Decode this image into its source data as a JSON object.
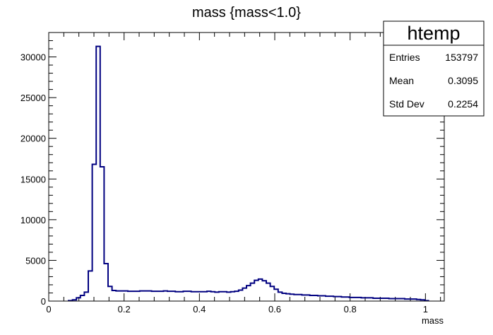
{
  "chart_data": {
    "type": "bar",
    "title": "mass {mass<1.0}",
    "xlabel": "mass",
    "ylabel": "",
    "xlim": [
      0,
      1.05
    ],
    "ylim": [
      0,
      33000
    ],
    "x_ticks": [
      0,
      0.2,
      0.4,
      0.6,
      0.8,
      1
    ],
    "x_tick_labels": [
      "0",
      "0.2",
      "0.4",
      "0.6",
      "0.8",
      "1"
    ],
    "y_ticks": [
      0,
      5000,
      10000,
      15000,
      20000,
      25000,
      30000
    ],
    "y_tick_labels": [
      "0",
      "5000",
      "10000",
      "15000",
      "20000",
      "25000",
      "30000"
    ],
    "bin_width": 0.0105,
    "bin_lower_edges": [
      0.0525,
      0.063,
      0.0735,
      0.084,
      0.0945,
      0.105,
      0.1155,
      0.126,
      0.1365,
      0.147,
      0.1575,
      0.168,
      0.1785,
      0.189,
      0.1995,
      0.21,
      0.2205,
      0.231,
      0.2415,
      0.252,
      0.2625,
      0.273,
      0.2835,
      0.294,
      0.3045,
      0.315,
      0.3255,
      0.336,
      0.3465,
      0.357,
      0.3675,
      0.378,
      0.3885,
      0.399,
      0.4095,
      0.42,
      0.4305,
      0.441,
      0.4515,
      0.462,
      0.4725,
      0.483,
      0.4935,
      0.504,
      0.5145,
      0.525,
      0.5355,
      0.546,
      0.5565,
      0.567,
      0.5775,
      0.588,
      0.5985,
      0.609,
      0.6195,
      0.63,
      0.6405,
      0.651,
      0.6615,
      0.672,
      0.6825,
      0.693,
      0.7035,
      0.714,
      0.7245,
      0.735,
      0.7455,
      0.756,
      0.7665,
      0.777,
      0.7875,
      0.798,
      0.8085,
      0.819,
      0.8295,
      0.84,
      0.8505,
      0.861,
      0.8715,
      0.882,
      0.8925,
      0.903,
      0.9135,
      0.924,
      0.9345,
      0.945,
      0.9555,
      0.966,
      0.9765,
      0.987,
      0.9975
    ],
    "bin_values": [
      50,
      150,
      400,
      700,
      1100,
      3700,
      16800,
      31300,
      16500,
      4600,
      1800,
      1300,
      1250,
      1250,
      1250,
      1200,
      1200,
      1200,
      1250,
      1250,
      1250,
      1200,
      1200,
      1200,
      1250,
      1200,
      1200,
      1150,
      1150,
      1200,
      1200,
      1150,
      1150,
      1150,
      1150,
      1200,
      1150,
      1100,
      1150,
      1150,
      1100,
      1150,
      1200,
      1350,
      1600,
      1900,
      2200,
      2550,
      2700,
      2500,
      2200,
      1800,
      1450,
      1100,
      950,
      900,
      850,
      800,
      800,
      750,
      750,
      700,
      700,
      650,
      650,
      600,
      600,
      550,
      550,
      500,
      500,
      450,
      450,
      450,
      400,
      400,
      400,
      350,
      350,
      350,
      350,
      300,
      300,
      300,
      300,
      250,
      250,
      250,
      200,
      150,
      50
    ],
    "line_color": "#000080",
    "stats_box": {
      "title": "htemp",
      "rows": [
        {
          "label": "Entries",
          "value": "153797"
        },
        {
          "label": "Mean",
          "value": "0.3095"
        },
        {
          "label": "Std Dev",
          "value": "0.2254"
        }
      ],
      "placement": "top-right"
    },
    "grid": false
  }
}
